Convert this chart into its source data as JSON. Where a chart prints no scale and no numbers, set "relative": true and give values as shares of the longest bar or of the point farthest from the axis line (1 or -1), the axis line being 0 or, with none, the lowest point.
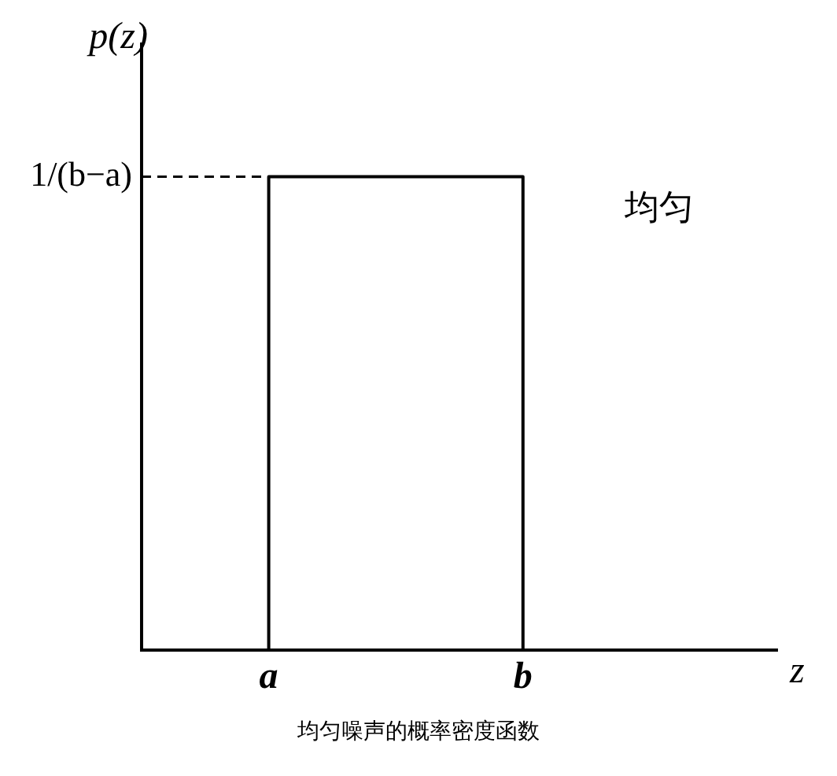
{
  "chart_data": {
    "type": "step",
    "relative": true,
    "xlabel": "z",
    "ylabel": "p(z)",
    "categories": [
      null,
      "a",
      null,
      "b",
      null,
      null
    ],
    "series": [
      {
        "color": "#000000",
        "values": [
          0,
          1,
          1,
          0,
          0,
          0
        ]
      }
    ],
    "ref_lines": [
      {
        "axis": "y",
        "value": 1,
        "label": "1/(b−a)",
        "color": "#000000",
        "line_style": "dashed"
      }
    ],
    "annotations": [
      "均匀",
      "均匀噪声的概率密度函数"
    ],
    "grid": false,
    "legend": false
  }
}
